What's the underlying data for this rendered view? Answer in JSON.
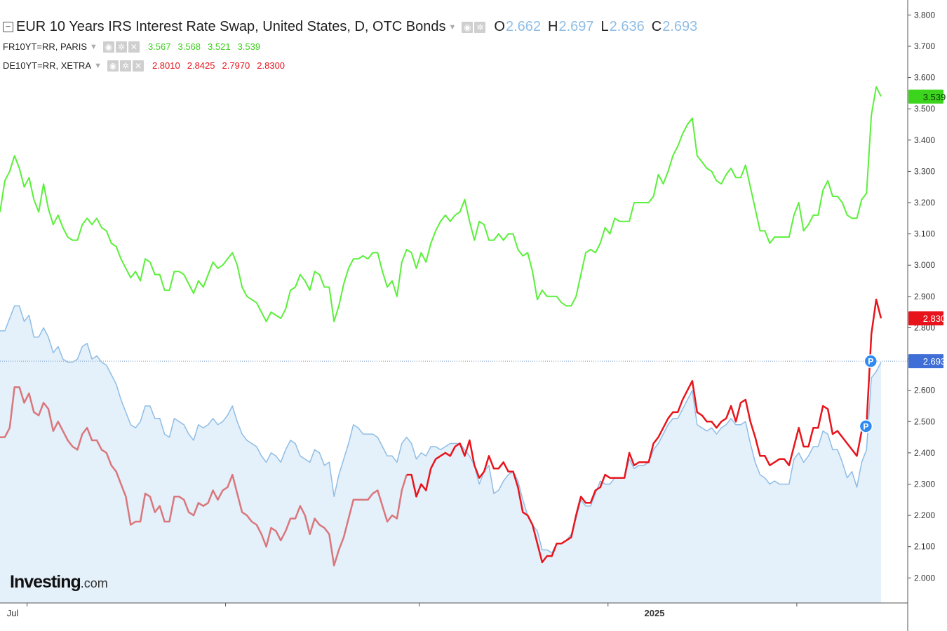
{
  "legend": {
    "main": {
      "title": "EUR 10 Years IRS Interest Rate Swap, United States, D, OTC Bonds",
      "o_label": "O",
      "o": "2.662",
      "h_label": "H",
      "h": "2.697",
      "l_label": "L",
      "l": "2.636",
      "c_label": "C",
      "c": "2.693"
    },
    "fr": {
      "title": "FR10YT=RR, PARIS",
      "v1": "3.567",
      "v2": "3.568",
      "v3": "3.521",
      "v4": "3.539"
    },
    "de": {
      "title": "DE10YT=RR, XETRA",
      "v1": "2.8010",
      "v2": "2.8425",
      "v3": "2.7970",
      "v4": "2.8300"
    }
  },
  "brand": {
    "name": "Investing",
    "suffix": ".com"
  },
  "colors": {
    "swap": "#8fbde6",
    "swap_fill": "#e4f0fa",
    "fr": "#5af03a",
    "de": "#e8141c",
    "de_faded": "#d9777c",
    "price_line": "#6f95c8",
    "swap_tag": "#3f6fd6"
  },
  "chart_data": {
    "type": "line",
    "x_tick_labels": [
      "Jul",
      "2025"
    ],
    "y_ticks": [
      "2.000",
      "2.100",
      "2.200",
      "2.300",
      "2.400",
      "2.500",
      "2.600",
      "2.700",
      "2.800",
      "2.900",
      "3.000",
      "3.100",
      "3.200",
      "3.300",
      "3.400",
      "3.500",
      "3.600",
      "3.700",
      "3.800"
    ],
    "ylim": [
      1.92,
      3.83
    ],
    "current_price_line": 2.693,
    "price_tags": [
      {
        "series": "fr",
        "text": "3.539",
        "value": 3.539
      },
      {
        "series": "de",
        "text": "2.830",
        "value": 2.83
      },
      {
        "series": "swap",
        "text": "2.693",
        "value": 2.693
      }
    ],
    "markers": [
      {
        "label": "P",
        "series": "swap",
        "value": 2.693
      },
      {
        "label": "P",
        "series": "de",
        "value": 2.485
      }
    ],
    "de_highlight_from_index": 84,
    "series": [
      {
        "key": "fr",
        "name": "FR10YT=RR, PARIS",
        "values": [
          3.17,
          3.27,
          3.3,
          3.35,
          3.31,
          3.25,
          3.28,
          3.21,
          3.17,
          3.26,
          3.18,
          3.13,
          3.16,
          3.12,
          3.09,
          3.08,
          3.08,
          3.13,
          3.15,
          3.13,
          3.15,
          3.12,
          3.11,
          3.07,
          3.06,
          3.02,
          2.99,
          2.96,
          2.98,
          2.95,
          3.02,
          3.01,
          2.97,
          2.97,
          2.92,
          2.92,
          2.98,
          2.98,
          2.97,
          2.94,
          2.91,
          2.95,
          2.93,
          2.97,
          3.01,
          2.99,
          3.0,
          3.02,
          3.04,
          3.0,
          2.93,
          2.9,
          2.89,
          2.88,
          2.85,
          2.82,
          2.85,
          2.84,
          2.83,
          2.86,
          2.92,
          2.93,
          2.97,
          2.95,
          2.92,
          2.98,
          2.97,
          2.93,
          2.93,
          2.82,
          2.87,
          2.94,
          2.99,
          3.02,
          3.02,
          3.03,
          3.02,
          3.04,
          3.04,
          2.98,
          2.93,
          2.95,
          2.9,
          3.01,
          3.05,
          3.04,
          2.99,
          3.04,
          3.01,
          3.07,
          3.11,
          3.14,
          3.16,
          3.14,
          3.16,
          3.17,
          3.21,
          3.14,
          3.08,
          3.14,
          3.13,
          3.08,
          3.08,
          3.1,
          3.08,
          3.1,
          3.1,
          3.05,
          3.03,
          3.04,
          2.98,
          2.89,
          2.92,
          2.9,
          2.9,
          2.9,
          2.88,
          2.87,
          2.87,
          2.9,
          2.97,
          3.04,
          3.05,
          3.04,
          3.07,
          3.12,
          3.1,
          3.15,
          3.14,
          3.14,
          3.14,
          3.2,
          3.2,
          3.2,
          3.2,
          3.22,
          3.29,
          3.26,
          3.3,
          3.35,
          3.38,
          3.42,
          3.45,
          3.47,
          3.35,
          3.33,
          3.31,
          3.3,
          3.27,
          3.26,
          3.29,
          3.31,
          3.28,
          3.28,
          3.32,
          3.25,
          3.18,
          3.11,
          3.11,
          3.07,
          3.09,
          3.09,
          3.09,
          3.09,
          3.16,
          3.2,
          3.11,
          3.13,
          3.16,
          3.16,
          3.24,
          3.27,
          3.22,
          3.22,
          3.2,
          3.16,
          3.15,
          3.15,
          3.21,
          3.23,
          3.48,
          3.57,
          3.54
        ]
      },
      {
        "key": "de",
        "name": "DE10YT=RR, XETRA",
        "values": [
          2.45,
          2.45,
          2.48,
          2.61,
          2.61,
          2.56,
          2.59,
          2.53,
          2.52,
          2.56,
          2.54,
          2.47,
          2.5,
          2.47,
          2.44,
          2.42,
          2.41,
          2.46,
          2.48,
          2.44,
          2.44,
          2.41,
          2.4,
          2.36,
          2.34,
          2.3,
          2.26,
          2.17,
          2.18,
          2.18,
          2.27,
          2.26,
          2.21,
          2.23,
          2.18,
          2.18,
          2.26,
          2.26,
          2.25,
          2.21,
          2.2,
          2.24,
          2.23,
          2.24,
          2.28,
          2.25,
          2.28,
          2.29,
          2.33,
          2.27,
          2.21,
          2.2,
          2.18,
          2.17,
          2.14,
          2.1,
          2.16,
          2.15,
          2.12,
          2.15,
          2.19,
          2.19,
          2.23,
          2.2,
          2.14,
          2.19,
          2.17,
          2.16,
          2.14,
          2.04,
          2.09,
          2.13,
          2.19,
          2.25,
          2.25,
          2.25,
          2.25,
          2.27,
          2.28,
          2.23,
          2.18,
          2.2,
          2.19,
          2.28,
          2.33,
          2.33,
          2.26,
          2.3,
          2.28,
          2.35,
          2.38,
          2.39,
          2.4,
          2.39,
          2.42,
          2.43,
          2.39,
          2.44,
          2.36,
          2.32,
          2.34,
          2.39,
          2.35,
          2.35,
          2.37,
          2.34,
          2.34,
          2.29,
          2.21,
          2.2,
          2.17,
          2.11,
          2.05,
          2.07,
          2.07,
          2.11,
          2.11,
          2.12,
          2.13,
          2.2,
          2.26,
          2.24,
          2.24,
          2.28,
          2.29,
          2.33,
          2.32,
          2.32,
          2.32,
          2.32,
          2.4,
          2.36,
          2.37,
          2.37,
          2.37,
          2.43,
          2.45,
          2.48,
          2.51,
          2.53,
          2.53,
          2.57,
          2.6,
          2.63,
          2.53,
          2.52,
          2.5,
          2.5,
          2.48,
          2.5,
          2.51,
          2.55,
          2.5,
          2.56,
          2.57,
          2.5,
          2.45,
          2.39,
          2.39,
          2.36,
          2.37,
          2.38,
          2.38,
          2.36,
          2.42,
          2.48,
          2.42,
          2.42,
          2.48,
          2.48,
          2.55,
          2.54,
          2.46,
          2.47,
          2.45,
          2.43,
          2.41,
          2.39,
          2.47,
          2.49,
          2.78,
          2.89,
          2.83
        ]
      },
      {
        "key": "swap",
        "name": "EUR 10 Years IRS Interest Rate Swap, United States, D, OTC Bonds",
        "values": [
          2.79,
          2.79,
          2.83,
          2.87,
          2.87,
          2.82,
          2.84,
          2.77,
          2.77,
          2.8,
          2.77,
          2.72,
          2.74,
          2.7,
          2.69,
          2.69,
          2.7,
          2.74,
          2.75,
          2.7,
          2.71,
          2.69,
          2.68,
          2.65,
          2.62,
          2.57,
          2.53,
          2.49,
          2.48,
          2.5,
          2.55,
          2.55,
          2.51,
          2.51,
          2.46,
          2.45,
          2.51,
          2.5,
          2.49,
          2.46,
          2.44,
          2.49,
          2.48,
          2.49,
          2.51,
          2.49,
          2.5,
          2.52,
          2.55,
          2.5,
          2.46,
          2.44,
          2.43,
          2.42,
          2.39,
          2.37,
          2.4,
          2.39,
          2.37,
          2.41,
          2.44,
          2.43,
          2.39,
          2.38,
          2.37,
          2.41,
          2.4,
          2.36,
          2.37,
          2.26,
          2.33,
          2.38,
          2.43,
          2.49,
          2.48,
          2.46,
          2.46,
          2.46,
          2.45,
          2.42,
          2.39,
          2.39,
          2.37,
          2.43,
          2.45,
          2.43,
          2.38,
          2.4,
          2.39,
          2.42,
          2.42,
          2.41,
          2.42,
          2.43,
          2.43,
          2.43,
          2.41,
          2.39,
          2.36,
          2.3,
          2.34,
          2.36,
          2.27,
          2.28,
          2.31,
          2.33,
          2.34,
          2.31,
          2.25,
          2.2,
          2.17,
          2.15,
          2.09,
          2.09,
          2.08,
          2.11,
          2.11,
          2.12,
          2.14,
          2.19,
          2.25,
          2.23,
          2.23,
          2.27,
          2.31,
          2.3,
          2.3,
          2.32,
          2.32,
          2.32,
          2.38,
          2.35,
          2.36,
          2.36,
          2.37,
          2.41,
          2.43,
          2.46,
          2.49,
          2.51,
          2.51,
          2.54,
          2.57,
          2.6,
          2.49,
          2.48,
          2.47,
          2.48,
          2.46,
          2.48,
          2.49,
          2.51,
          2.49,
          2.49,
          2.5,
          2.43,
          2.37,
          2.33,
          2.32,
          2.3,
          2.31,
          2.3,
          2.3,
          2.3,
          2.38,
          2.4,
          2.37,
          2.39,
          2.42,
          2.42,
          2.47,
          2.46,
          2.41,
          2.41,
          2.37,
          2.32,
          2.34,
          2.29,
          2.37,
          2.41,
          2.64,
          2.66,
          2.69
        ]
      }
    ]
  }
}
